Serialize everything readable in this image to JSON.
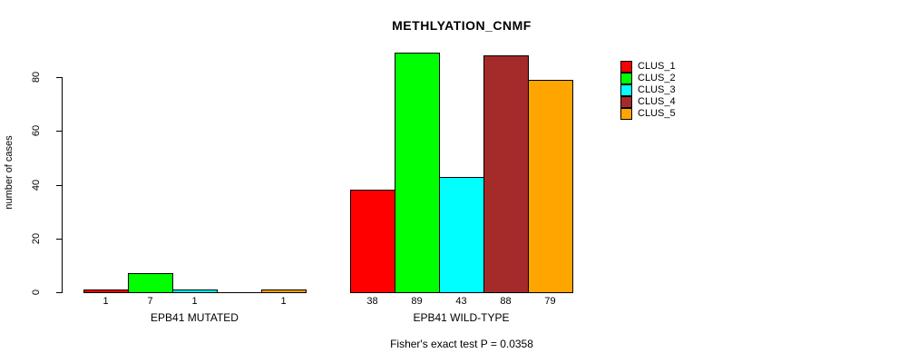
{
  "chart_data": {
    "type": "bar",
    "title": "METHLYATION_CNMF",
    "ylabel": "number of cases",
    "ylim": [
      0,
      80
    ],
    "yticks": [
      0,
      20,
      40,
      60,
      80
    ],
    "grid": false,
    "legend_position": "right",
    "annotation": "Fisher's exact test P = 0.0358",
    "series": [
      {
        "name": "CLUS_1",
        "color": "#ff0000"
      },
      {
        "name": "CLUS_2",
        "color": "#00ff00"
      },
      {
        "name": "CLUS_3",
        "color": "#00ffff"
      },
      {
        "name": "CLUS_4",
        "color": "#a52a2a"
      },
      {
        "name": "CLUS_5",
        "color": "#ffa500"
      }
    ],
    "groups": [
      {
        "label": "EPB41 MUTATED",
        "values": [
          1,
          7,
          1,
          0,
          1
        ],
        "value_labels": [
          "1",
          "7",
          "1",
          "",
          "1"
        ]
      },
      {
        "label": "EPB41 WILD-TYPE",
        "values": [
          38,
          89,
          43,
          88,
          79
        ],
        "value_labels": [
          "38",
          "89",
          "43",
          "88",
          "79"
        ]
      }
    ]
  }
}
